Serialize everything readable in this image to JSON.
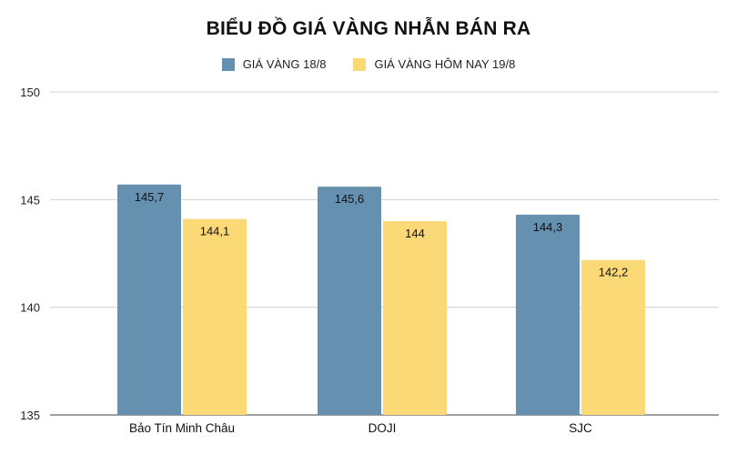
{
  "chart_data": {
    "type": "bar",
    "title": "BIỂU ĐỒ GIÁ VÀNG NHẪN BÁN RA",
    "categories": [
      "Bảo Tín Minh Châu",
      "DOJI",
      "SJC"
    ],
    "series": [
      {
        "name": "GIÁ VÀNG 18/8",
        "color": "#6690b0",
        "values": [
          145.7,
          145.6,
          144.3
        ],
        "labels": [
          "145,7",
          "145,6",
          "144,3"
        ]
      },
      {
        "name": "GIÁ VÀNG HÔM NAY 19/8",
        "color": "#fbd977",
        "values": [
          144.1,
          144,
          142.2
        ],
        "labels": [
          "144,1",
          "144",
          "142,2"
        ]
      }
    ],
    "ylim": [
      135,
      150
    ],
    "yticks": [
      135,
      140,
      145,
      150
    ],
    "grid": true,
    "legend_position": "top-center"
  }
}
